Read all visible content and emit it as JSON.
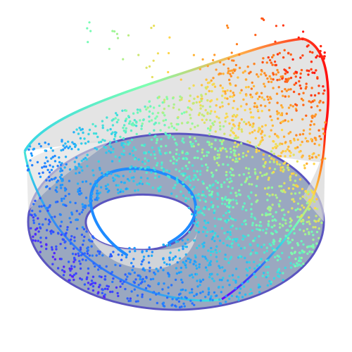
{
  "figure": {
    "description_visible_text": "",
    "colors": {
      "background": "#ffffff",
      "annulus_fill": "#9aa8c0",
      "annulus_outline": "#5b55c0",
      "surface_fill": "#e6e6e6",
      "colormap": [
        "#6a00ff",
        "#2f57ff",
        "#1e9bff",
        "#35d6e6",
        "#7dffb0",
        "#ffd84a",
        "#ff7a1a",
        "#ff1010"
      ]
    },
    "elements": {
      "base_annulus": "projected-annulus",
      "surface": "swiss-roll-like-surface",
      "points": "colored-point-cloud"
    }
  }
}
